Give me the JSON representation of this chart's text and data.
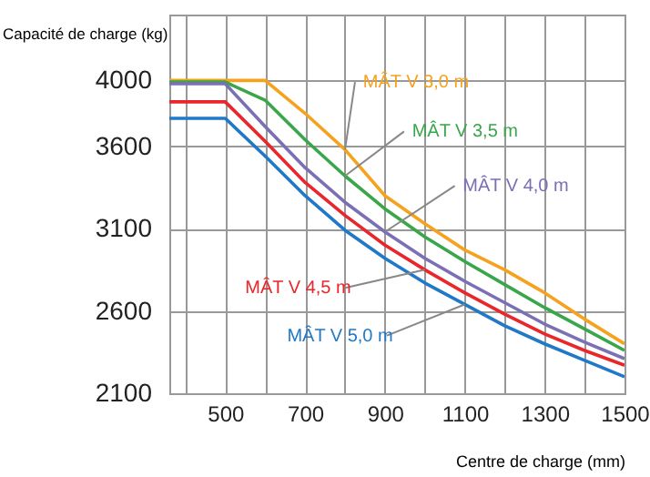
{
  "chart_data": {
    "type": "line",
    "xlabel": "Centre de charge (mm)",
    "ylabel": "Capacité de charge (kg)",
    "x": [
      360,
      500,
      600,
      700,
      800,
      900,
      1000,
      1100,
      1200,
      1300,
      1400,
      1500
    ],
    "series": [
      {
        "name": "MÂT V 3,0 m",
        "color": "#f5a21f",
        "values": [
          4000,
          4000,
          4000,
          3800,
          3580,
          3300,
          3130,
          2970,
          2850,
          2710,
          2550,
          2400
        ]
      },
      {
        "name": "MÂT V 3,5 m",
        "color": "#3aa64a",
        "values": [
          3990,
          3990,
          3880,
          3640,
          3420,
          3220,
          3050,
          2900,
          2760,
          2620,
          2490,
          2360
        ]
      },
      {
        "name": "MÂT V 4,0 m",
        "color": "#7b6fb5",
        "values": [
          3980,
          3980,
          3720,
          3470,
          3260,
          3080,
          2920,
          2780,
          2650,
          2520,
          2410,
          2310
        ]
      },
      {
        "name": "MÂT V 4,5 m",
        "color": "#e8262b",
        "values": [
          3870,
          3870,
          3630,
          3380,
          3180,
          3000,
          2850,
          2710,
          2580,
          2460,
          2360,
          2270
        ]
      },
      {
        "name": "MÂT V 5,0 m",
        "color": "#1f78c8",
        "values": [
          3770,
          3770,
          3540,
          3300,
          3090,
          2920,
          2770,
          2640,
          2510,
          2400,
          2300,
          2200
        ]
      }
    ],
    "xlim": [
      360,
      1500
    ],
    "xticks": [
      {
        "value": 400,
        "label": null
      },
      500,
      {
        "value": 600,
        "label": null
      },
      700,
      {
        "value": 800,
        "label": null
      },
      900,
      {
        "value": 1000,
        "label": null
      },
      1100,
      {
        "value": 1200,
        "label": null
      },
      1300,
      {
        "value": 1400,
        "label": null
      },
      1500
    ],
    "ylim": [
      2100,
      4400
    ],
    "yticks": [
      2100,
      2600,
      3100,
      3600,
      4000
    ],
    "grid": true,
    "marker": "none",
    "line_style": "solid"
  }
}
